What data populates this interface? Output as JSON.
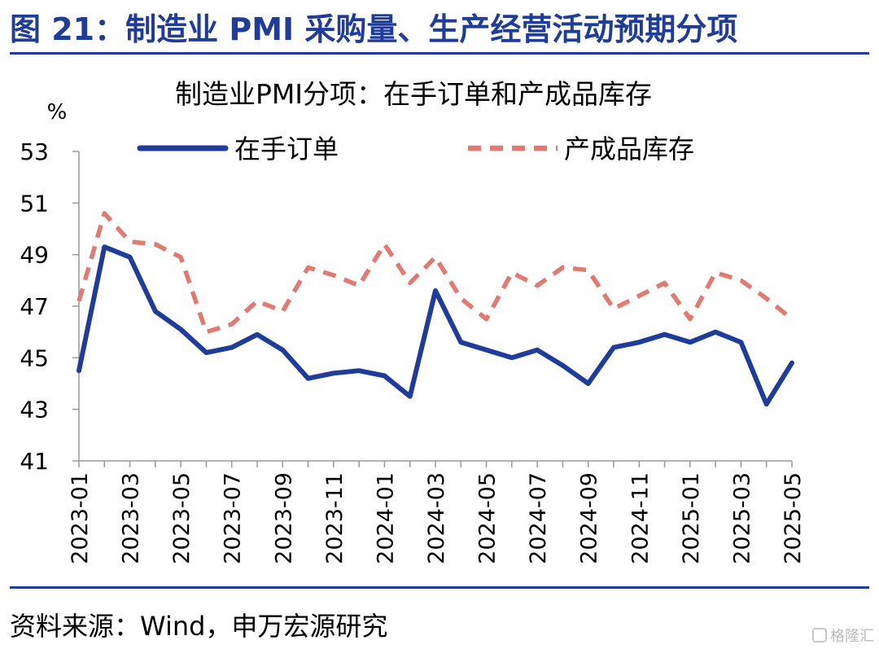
{
  "figure_title": "图 21：制造业 PMI 采购量、生产经营活动预期分项",
  "source": "资料来源：Wind，申万宏源研究",
  "watermark": "格隆汇",
  "colors": {
    "accent": "#1f3c99",
    "series1": "#1f3c99",
    "series2": "#e07a72"
  },
  "chart_data": {
    "type": "line",
    "title": "制造业PMI分项：在手订单和产成品库存",
    "ylabel": "%",
    "ylim": [
      41,
      53
    ],
    "yticks": [
      "41",
      "43",
      "45",
      "47",
      "49",
      "51",
      "53"
    ],
    "grid": false,
    "legend_position": "top",
    "x": [
      "2023-01",
      "2023-02",
      "2023-03",
      "2023-04",
      "2023-05",
      "2023-06",
      "2023-07",
      "2023-08",
      "2023-09",
      "2023-10",
      "2023-11",
      "2023-12",
      "2024-01",
      "2024-02",
      "2024-03",
      "2024-04",
      "2024-05",
      "2024-06",
      "2024-07",
      "2024-08",
      "2024-09",
      "2024-10",
      "2024-11",
      "2024-12",
      "2025-01",
      "2025-02",
      "2025-03",
      "2025-04",
      "2025-05"
    ],
    "xtick_labels": [
      "2023-01",
      "2023-03",
      "2023-05",
      "2023-07",
      "2023-09",
      "2023-11",
      "2024-01",
      "2024-03",
      "2024-05",
      "2024-07",
      "2024-09",
      "2024-11",
      "2025-01",
      "2025-03",
      "2025-05"
    ],
    "series": [
      {
        "name": "在手订单",
        "style": "solid",
        "values": [
          44.5,
          49.3,
          48.9,
          46.8,
          46.1,
          45.2,
          45.4,
          45.9,
          45.3,
          44.2,
          44.4,
          44.5,
          44.3,
          43.5,
          47.6,
          45.6,
          45.3,
          45.0,
          45.3,
          44.7,
          44.0,
          45.4,
          45.6,
          45.9,
          45.6,
          46.0,
          45.6,
          43.2,
          44.8
        ]
      },
      {
        "name": "产成品库存",
        "style": "dashed",
        "values": [
          47.2,
          50.6,
          49.5,
          49.4,
          48.9,
          46.0,
          46.3,
          47.2,
          46.8,
          48.5,
          48.2,
          47.8,
          49.4,
          47.9,
          48.9,
          47.3,
          46.5,
          48.3,
          47.8,
          48.5,
          48.4,
          46.9,
          47.4,
          47.9,
          46.5,
          48.3,
          48.0,
          47.3,
          46.5
        ]
      }
    ]
  }
}
